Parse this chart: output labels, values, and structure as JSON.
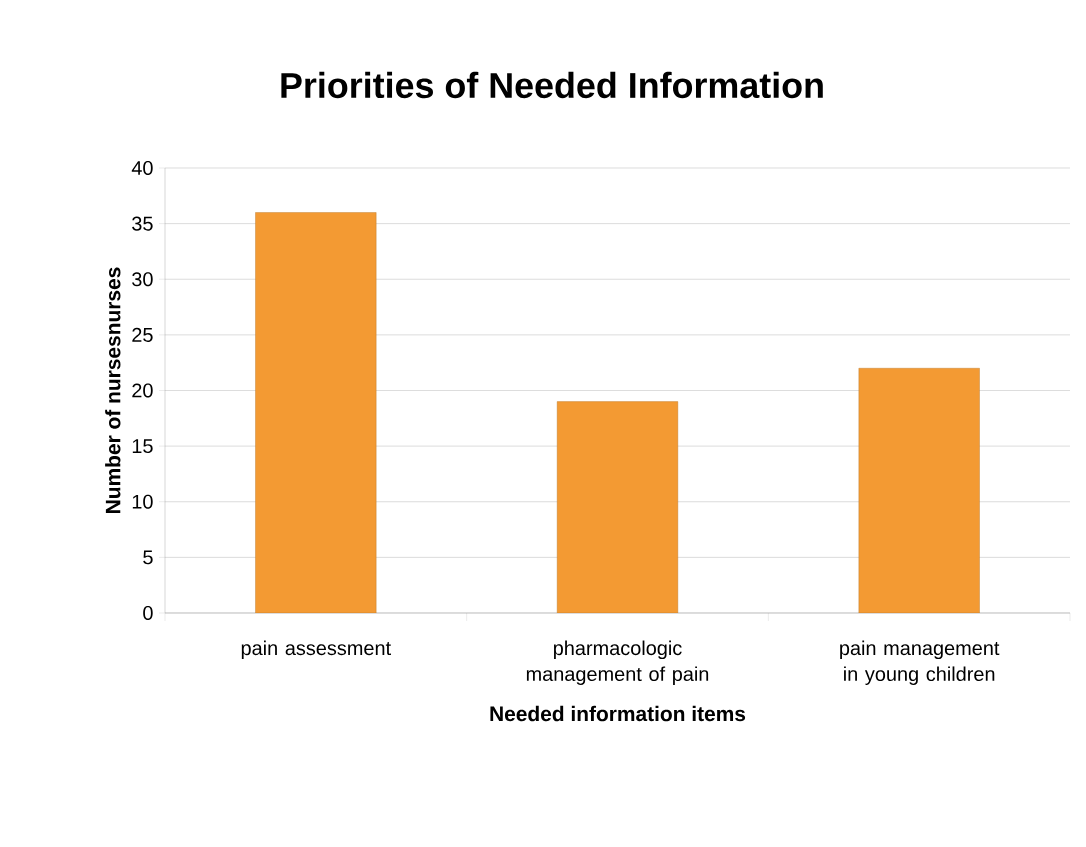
{
  "chart_data": {
    "type": "bar",
    "title": "Priorities of Needed Information",
    "xlabel": "Needed information items",
    "ylabel": "Number of nursesnurses",
    "categories": [
      "pain assessment",
      "pharmacologic management of pain",
      "pain management in young children"
    ],
    "values": [
      36,
      19,
      22
    ],
    "color": "#f39a33",
    "ylim": [
      0,
      40
    ],
    "yticks": [
      0,
      5,
      10,
      15,
      20,
      25,
      30,
      35,
      40
    ],
    "grid": "y"
  }
}
